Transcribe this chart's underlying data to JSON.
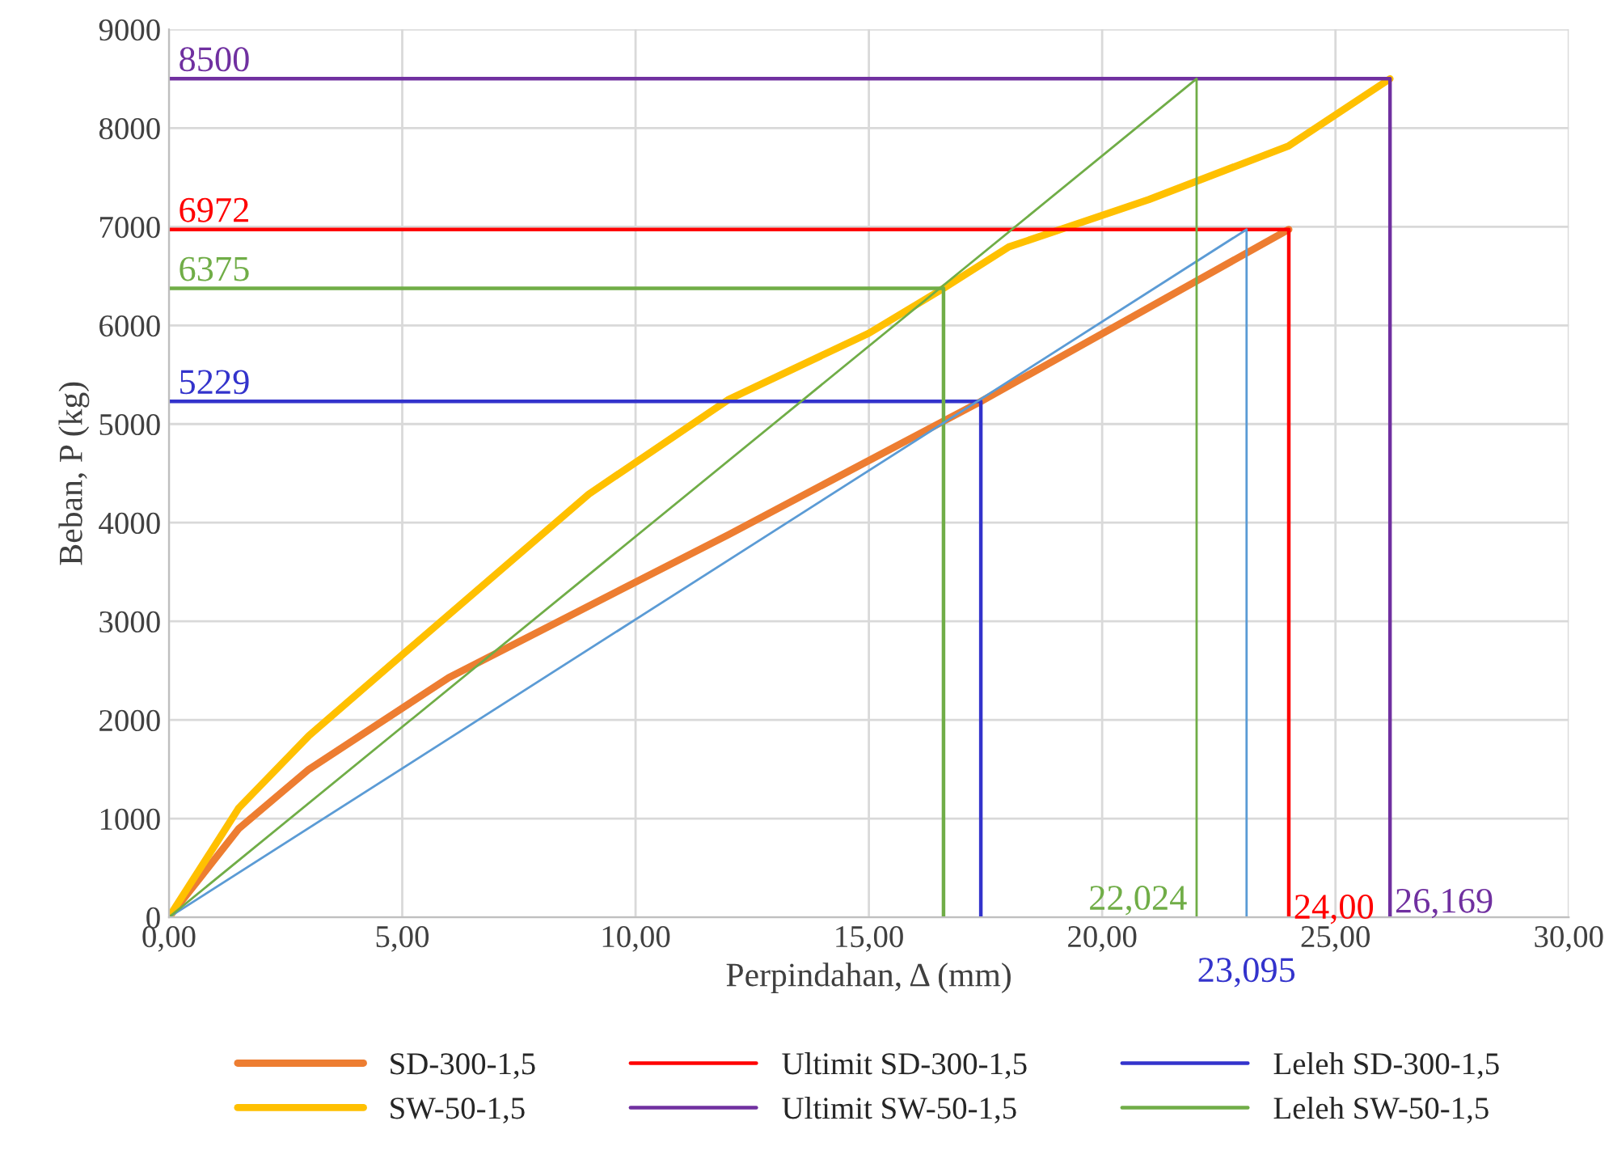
{
  "chart_data": {
    "type": "line",
    "xlabel": "Perpindahan, Δ (mm)",
    "ylabel": "Beban, P (kg)",
    "xlim": [
      0,
      30
    ],
    "xticks": [
      {
        "value": 0,
        "label": "0,00"
      },
      {
        "value": 5,
        "label": "5,00"
      },
      {
        "value": 10,
        "label": "10,00"
      },
      {
        "value": 15,
        "label": "15,00"
      },
      {
        "value": 20,
        "label": "20,00"
      },
      {
        "value": 25,
        "label": "25,00"
      },
      {
        "value": 30,
        "label": "30,00"
      }
    ],
    "ylim": [
      0,
      9000
    ],
    "yticks": [
      0,
      1000,
      2000,
      3000,
      4000,
      5000,
      6000,
      7000,
      8000,
      9000
    ],
    "grid": true,
    "legend": "bottom",
    "marker": "none",
    "line_style": "solid",
    "series": [
      {
        "name": "SD-300-1,5",
        "color": "#ed7d31",
        "x": [
          0,
          1.5,
          3,
          6,
          12,
          17.4,
          24.0
        ],
        "values": [
          0,
          900,
          1500,
          2430,
          3880,
          5229,
          6972
        ]
      },
      {
        "name": "SW-50-1,5",
        "color": "#ffc000",
        "x": [
          0,
          1.5,
          3,
          5,
          9,
          12,
          15,
          16.6,
          18,
          21,
          24,
          26.169
        ],
        "values": [
          0,
          1110,
          1840,
          2660,
          4290,
          5250,
          5920,
          6375,
          6795,
          7275,
          7820,
          8500
        ]
      },
      {
        "name": "Ultimit SD-300-1,5",
        "color": "#ff0000",
        "x": [
          0,
          24.0,
          24.0
        ],
        "values": [
          6972,
          6972,
          0
        ]
      },
      {
        "name": "Ultimit SW-50-1,5",
        "color": "#7030a0",
        "x": [
          0,
          26.169,
          26.169
        ],
        "values": [
          8500,
          8500,
          0
        ]
      },
      {
        "name": "Leleh SD-300-1,5",
        "color": "#3333cc",
        "x": [
          0,
          17.4,
          17.4
        ],
        "values": [
          5229,
          5229,
          0
        ]
      },
      {
        "name": "Leleh SW-50-1,5",
        "color": "#70ad47",
        "x": [
          0,
          16.6,
          16.6
        ],
        "values": [
          6375,
          6375,
          0
        ]
      },
      {
        "color": "#5b9bd5",
        "x": [
          0,
          23.095,
          23.095
        ],
        "values": [
          0,
          6972,
          0
        ]
      },
      {
        "color": "#70ad47",
        "x": [
          0,
          22.024,
          22.024
        ],
        "values": [
          0,
          8500,
          0
        ]
      }
    ],
    "annotations": [
      {
        "text": "8500",
        "x": 0,
        "y": 8500
      },
      {
        "text": "6972",
        "x": 0,
        "y": 6972
      },
      {
        "text": "6375",
        "x": 0,
        "y": 6375
      },
      {
        "text": "5229",
        "x": 0,
        "y": 5229
      },
      {
        "text": "22,024",
        "x": 22.024,
        "y": 0
      },
      {
        "text": "23,095",
        "x": 23.095,
        "y": 0
      },
      {
        "text": "24,00",
        "x": 24.0,
        "y": 0
      },
      {
        "text": "26,169",
        "x": 26.169,
        "y": 0
      }
    ]
  }
}
